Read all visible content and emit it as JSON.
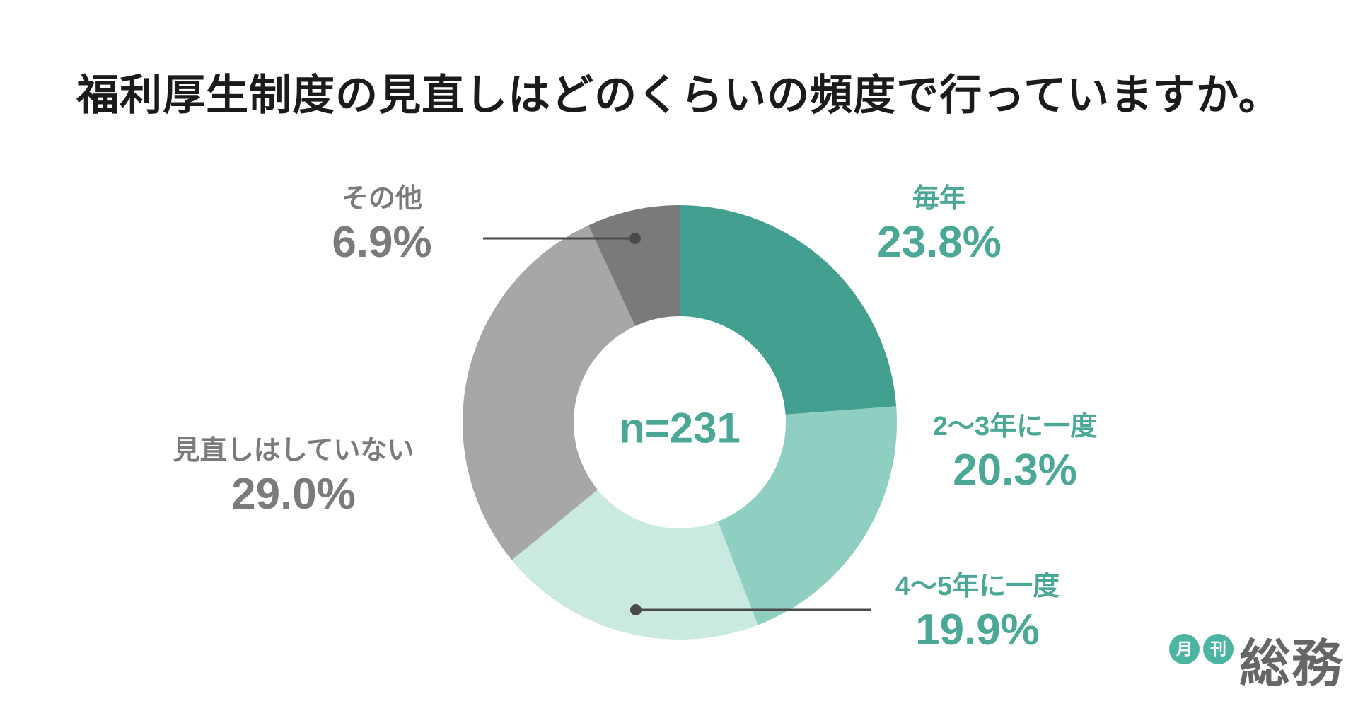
{
  "title": "福利厚生制度の見直しはどのくらいの頻度で行っていますか。",
  "chart_data": {
    "type": "pie",
    "subtype": "donut",
    "title": "福利厚生制度の見直しはどのくらいの頻度で行っていますか。",
    "center_label": "n=231",
    "sample_size": 231,
    "start_angle_deg": 0,
    "direction": "clockwise",
    "inner_radius_ratio": 0.49,
    "legend_position": "outside-callout-labels",
    "grid": false,
    "segments": [
      {
        "label": "毎年",
        "value": 23.8,
        "pct_label": "23.8%",
        "color": "#43a090",
        "label_color": "#4ba796"
      },
      {
        "label": "2〜3年に一度",
        "value": 20.3,
        "pct_label": "20.3%",
        "color": "#8fcfc1",
        "label_color": "#4ba796"
      },
      {
        "label": "4〜5年に一度",
        "value": 19.9,
        "pct_label": "19.9%",
        "color": "#c9e9e1",
        "label_color": "#4ba796"
      },
      {
        "label": "見直しはしていない",
        "value": 29.0,
        "pct_label": "29.0%",
        "color": "#a7a7a7",
        "label_color": "#7b7b7b"
      },
      {
        "label": "その他",
        "value": 6.9,
        "pct_label": "6.9%",
        "color": "#7a7a7a",
        "label_color": "#7b7b7b"
      }
    ],
    "callout_line_color": "#4a4a4a"
  },
  "logo": {
    "badge1": "月",
    "badge2": "刊",
    "text": "総務",
    "badge_color": "#4cb5a2",
    "text_color": "#666666"
  }
}
